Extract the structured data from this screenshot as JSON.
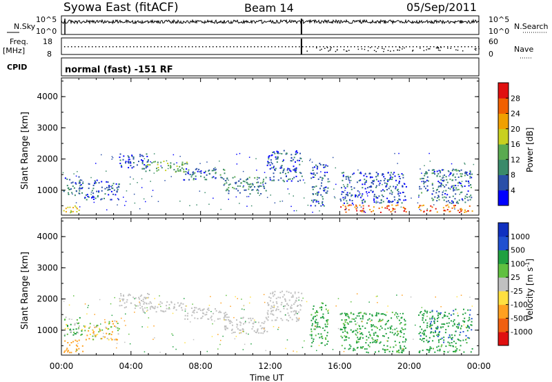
{
  "header": {
    "station": "Syowa East (fitACF)",
    "beam": "Beam 14",
    "date": "05/Sep/2011"
  },
  "aux_panels": {
    "nsky_label": "N.Sky",
    "nsky_ticks": [
      "10^5",
      "10^0"
    ],
    "nsearch_label": "N.Search",
    "freq_label": "Freq.",
    "freq_unit": "[MHz]",
    "freq_ticks": [
      "18",
      "8"
    ],
    "nave_ticks": [
      "60",
      "0"
    ],
    "nave_label": "Nave",
    "cpid_label": "CPID",
    "cpid_text": "normal (fast) -151 RF"
  },
  "colors": {
    "power_scale": [
      "#0000ff",
      "#2a4fa8",
      "#3a8a6a",
      "#5aaa50",
      "#c8d020",
      "#f0a000",
      "#f06000",
      "#e01010"
    ],
    "velocity_scale": [
      "#1030c0",
      "#2050d0",
      "#20a040",
      "#60c040",
      "#c0c0c0",
      "#ffe040",
      "#ffa020",
      "#f06010",
      "#e01010"
    ]
  },
  "chart_data": [
    {
      "type": "heatmap",
      "title": "Power",
      "ylabel": "Slant Range [km]",
      "xlabel": "",
      "y_ticks": [
        "4000",
        "3000",
        "2000",
        "1000"
      ],
      "ylim": [
        200,
        4600
      ],
      "xlim": [
        0,
        24
      ],
      "colorbar_label": "Power [dB]",
      "colorbar_ticks": [
        "28",
        "24",
        "20",
        "16",
        "12",
        "8",
        "4"
      ],
      "colorbar_range": [
        0,
        32
      ],
      "blobs": [
        {
          "t0": 0.1,
          "t1": 1.2,
          "r0": 800,
          "r1": 1450,
          "v": 8
        },
        {
          "t0": 0.1,
          "t1": 1.2,
          "r0": 300,
          "r1": 550,
          "v": 18
        },
        {
          "t0": 1.3,
          "t1": 3.3,
          "r0": 700,
          "r1": 1350,
          "v": 6
        },
        {
          "t0": 3.3,
          "t1": 5.0,
          "r0": 1700,
          "r1": 2200,
          "v": 5
        },
        {
          "t0": 4.6,
          "t1": 7.2,
          "r0": 1600,
          "r1": 1950,
          "v": 13
        },
        {
          "t0": 7.0,
          "t1": 9.5,
          "r0": 1350,
          "r1": 1750,
          "v": 8
        },
        {
          "t0": 9.3,
          "t1": 11.8,
          "r0": 900,
          "r1": 1450,
          "v": 10
        },
        {
          "t0": 11.8,
          "t1": 13.8,
          "r0": 1300,
          "r1": 2300,
          "v": 6
        },
        {
          "t0": 14.3,
          "t1": 15.3,
          "r0": 500,
          "r1": 1900,
          "v": 7
        },
        {
          "t0": 16.0,
          "t1": 19.8,
          "r0": 600,
          "r1": 1600,
          "v": 6
        },
        {
          "t0": 16.0,
          "t1": 19.8,
          "r0": 300,
          "r1": 550,
          "v": 25
        },
        {
          "t0": 20.5,
          "t1": 23.6,
          "r0": 600,
          "r1": 1700,
          "v": 8
        },
        {
          "t0": 20.5,
          "t1": 23.6,
          "r0": 300,
          "r1": 550,
          "v": 25
        }
      ]
    },
    {
      "type": "heatmap",
      "title": "Velocity",
      "ylabel": "Slant Range [km]",
      "xlabel": "Time UT",
      "x_ticks": [
        "00:00",
        "04:00",
        "08:00",
        "12:00",
        "16:00",
        "20:00",
        "00:00"
      ],
      "y_ticks": [
        "4000",
        "3000",
        "2000",
        "1000"
      ],
      "ylim": [
        200,
        4600
      ],
      "xlim": [
        0,
        24
      ],
      "colorbar_label": "Velocity [m s^-1]",
      "colorbar_ticks": [
        "1000",
        "500",
        "100",
        "25",
        "-25",
        "-100",
        "-500",
        "-1000"
      ],
      "blobs": [
        {
          "t0": 0.1,
          "t1": 1.2,
          "r0": 800,
          "r1": 1450,
          "v": 100
        },
        {
          "t0": 0.1,
          "t1": 1.2,
          "r0": 300,
          "r1": 700,
          "v": -300
        },
        {
          "t0": 1.3,
          "t1": 3.3,
          "r0": 700,
          "r1": 1350,
          "v": -60
        },
        {
          "t0": 3.3,
          "t1": 5.0,
          "r0": 1700,
          "r1": 2200,
          "v": 0
        },
        {
          "t0": 4.6,
          "t1": 7.2,
          "r0": 1600,
          "r1": 1950,
          "v": 0
        },
        {
          "t0": 7.0,
          "t1": 9.5,
          "r0": 1350,
          "r1": 1750,
          "v": 0
        },
        {
          "t0": 9.3,
          "t1": 11.8,
          "r0": 900,
          "r1": 1450,
          "v": 0
        },
        {
          "t0": 11.8,
          "t1": 13.8,
          "r0": 1300,
          "r1": 2300,
          "v": 0
        },
        {
          "t0": 14.3,
          "t1": 15.3,
          "r0": 500,
          "r1": 1900,
          "v": 200
        },
        {
          "t0": 16.0,
          "t1": 19.8,
          "r0": 600,
          "r1": 1600,
          "v": 200
        },
        {
          "t0": 16.0,
          "t1": 19.8,
          "r0": 300,
          "r1": 550,
          "v": 200
        },
        {
          "t0": 20.5,
          "t1": 23.6,
          "r0": 600,
          "r1": 1700,
          "v": 400
        },
        {
          "t0": 20.5,
          "t1": 23.6,
          "r0": 300,
          "r1": 550,
          "v": 200
        }
      ]
    }
  ]
}
